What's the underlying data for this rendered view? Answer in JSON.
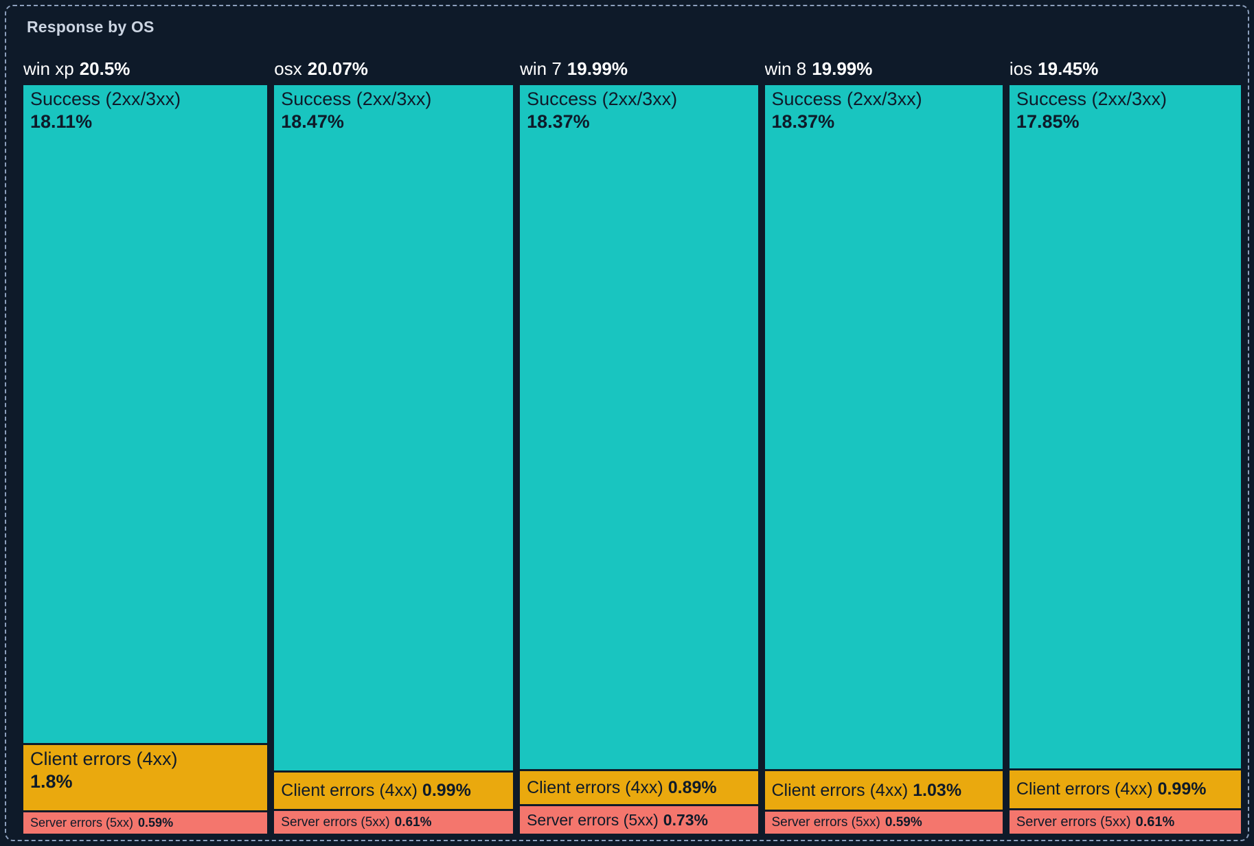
{
  "panel": {
    "title": "Response by OS"
  },
  "chart_data": {
    "type": "treemap",
    "title": "Response by OS",
    "unit": "%",
    "orientation": "columns-by-os, vertical split by response class",
    "legend_categories": [
      "Success (2xx/3xx)",
      "Client errors (4xx)",
      "Server errors (5xx)"
    ],
    "colors": {
      "success": "#19c5c0",
      "client_errors": "#eaa90e",
      "server_errors": "#f4766d",
      "background": "#0e1a29",
      "segment_text": "#0e1a29",
      "header_text": "#ffffff",
      "title_text": "#ccd5e2",
      "border": "#8da0bd"
    },
    "columns": [
      {
        "os": "win xp",
        "total": 20.5,
        "total_label": "20.5%",
        "segments": [
          {
            "kind": "success",
            "label": "Success (2xx/3xx)",
            "value": 18.11,
            "value_label": "18.11%"
          },
          {
            "kind": "client_errors",
            "label": "Client errors (4xx)",
            "value": 1.8,
            "value_label": "1.8%"
          },
          {
            "kind": "server_errors",
            "label": "Server errors (5xx)",
            "value": 0.59,
            "value_label": "0.59%"
          }
        ]
      },
      {
        "os": "osx",
        "total": 20.07,
        "total_label": "20.07%",
        "segments": [
          {
            "kind": "success",
            "label": "Success (2xx/3xx)",
            "value": 18.47,
            "value_label": "18.47%"
          },
          {
            "kind": "client_errors",
            "label": "Client errors (4xx)",
            "value": 0.99,
            "value_label": "0.99%"
          },
          {
            "kind": "server_errors",
            "label": "Server errors (5xx)",
            "value": 0.61,
            "value_label": "0.61%"
          }
        ]
      },
      {
        "os": "win 7",
        "total": 19.99,
        "total_label": "19.99%",
        "segments": [
          {
            "kind": "success",
            "label": "Success (2xx/3xx)",
            "value": 18.37,
            "value_label": "18.37%"
          },
          {
            "kind": "client_errors",
            "label": "Client errors (4xx)",
            "value": 0.89,
            "value_label": "0.89%"
          },
          {
            "kind": "server_errors",
            "label": "Server errors (5xx)",
            "value": 0.73,
            "value_label": "0.73%"
          }
        ]
      },
      {
        "os": "win 8",
        "total": 19.99,
        "total_label": "19.99%",
        "segments": [
          {
            "kind": "success",
            "label": "Success (2xx/3xx)",
            "value": 18.37,
            "value_label": "18.37%"
          },
          {
            "kind": "client_errors",
            "label": "Client errors (4xx)",
            "value": 1.03,
            "value_label": "1.03%"
          },
          {
            "kind": "server_errors",
            "label": "Server errors (5xx)",
            "value": 0.59,
            "value_label": "0.59%"
          }
        ]
      },
      {
        "os": "ios",
        "total": 19.45,
        "total_label": "19.45%",
        "segments": [
          {
            "kind": "success",
            "label": "Success (2xx/3xx)",
            "value": 17.85,
            "value_label": "17.85%"
          },
          {
            "kind": "client_errors",
            "label": "Client errors (4xx)",
            "value": 0.99,
            "value_label": "0.99%"
          },
          {
            "kind": "server_errors",
            "label": "Server errors (5xx)",
            "value": 0.61,
            "value_label": "0.61%"
          }
        ]
      }
    ]
  }
}
